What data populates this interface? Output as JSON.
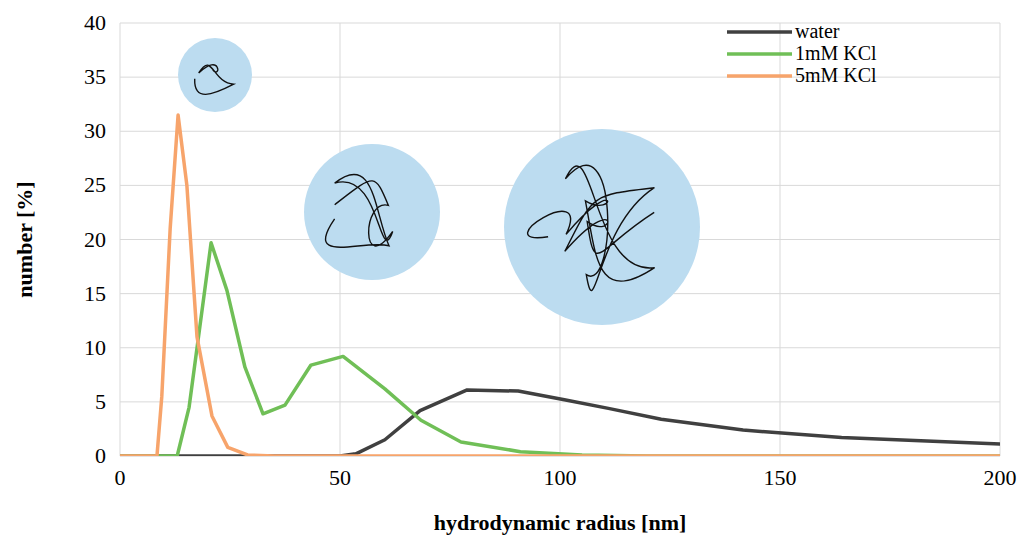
{
  "chart_data": {
    "type": "line",
    "x_label": "hydrodynamic radius [nm]",
    "y_label": "number [%]",
    "xlim": [
      0,
      200
    ],
    "ylim": [
      0,
      40
    ],
    "xticks": [
      0,
      50,
      100,
      150,
      200
    ],
    "yticks": [
      0,
      5,
      10,
      15,
      20,
      25,
      30,
      35,
      40
    ],
    "grid": true,
    "legend": "top-right",
    "series": [
      {
        "name": "water",
        "color": "#404040",
        "line_style": "solid",
        "x": [
          0,
          50,
          53.6,
          60.2,
          68.2,
          78.9,
          90.5,
          101,
          111,
          123,
          141.6,
          164,
          200
        ],
        "values": [
          0,
          0,
          0.2,
          1.5,
          4.2,
          6.1,
          6.0,
          5.2,
          4.4,
          3.4,
          2.4,
          1.7,
          1.1
        ]
      },
      {
        "name": "1mM KCl",
        "color": "#70bf57",
        "line_style": "solid",
        "x": [
          0,
          13,
          15.7,
          20.7,
          24.3,
          28.4,
          32.5,
          37.5,
          43.4,
          50.7,
          60.2,
          68.4,
          77.5,
          91,
          105,
          120,
          200
        ],
        "values": [
          0,
          0,
          4.5,
          19.7,
          15.3,
          8.2,
          3.9,
          4.7,
          8.4,
          9.2,
          6.2,
          3.3,
          1.3,
          0.4,
          0.1,
          0,
          0
        ]
      },
      {
        "name": "5mM KCl",
        "color": "#f7a46b",
        "line_style": "solid",
        "x": [
          0,
          8.4,
          9.5,
          11.4,
          13.2,
          15.2,
          17.5,
          20.9,
          24.5,
          29,
          35,
          200
        ],
        "values": [
          0,
          0,
          5.5,
          21,
          31.5,
          25,
          11,
          3.7,
          0.8,
          0.1,
          0,
          0
        ]
      }
    ]
  }
}
